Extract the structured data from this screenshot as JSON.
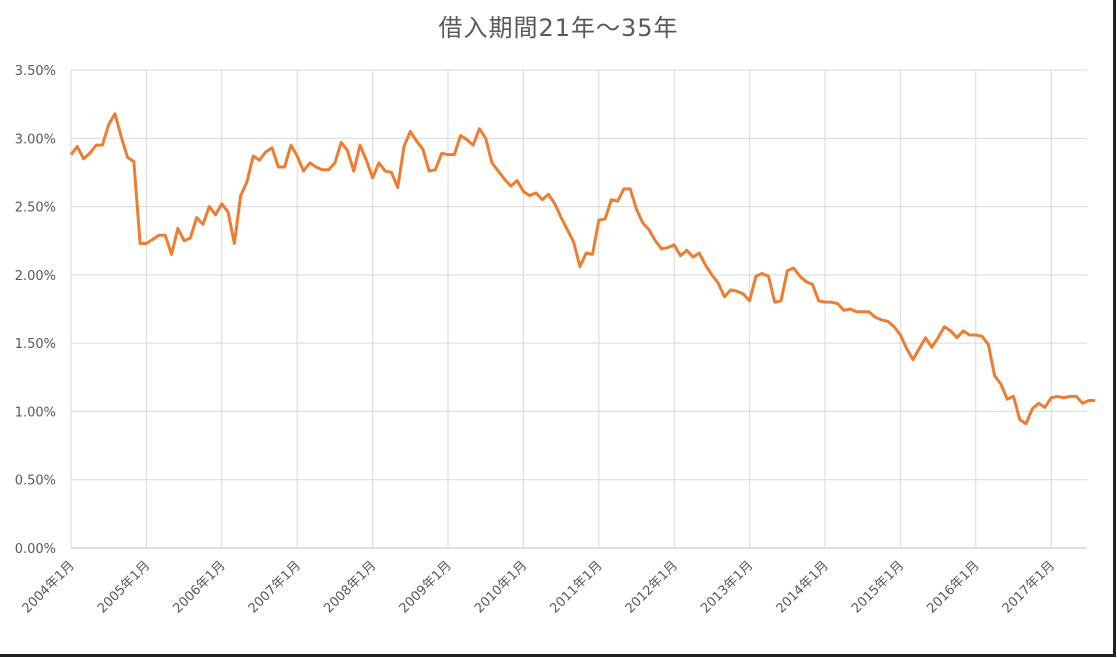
{
  "chart_data": {
    "type": "line",
    "title": "借入期間21年～35年",
    "xlabel": "",
    "ylabel": "",
    "ylim": [
      0,
      0.035
    ],
    "y_ticks": [
      "0.00%",
      "0.50%",
      "1.00%",
      "1.50%",
      "2.00%",
      "2.50%",
      "3.00%",
      "3.50%"
    ],
    "x_ticks": [
      "2004年1月",
      "2005年1月",
      "2006年1月",
      "2007年1月",
      "2008年1月",
      "2009年1月",
      "2010年1月",
      "2011年1月",
      "2012年1月",
      "2013年1月",
      "2014年1月",
      "2015年1月",
      "2016年1月",
      "2017年1月"
    ],
    "x_start": "2004-01",
    "grid": true,
    "legend": "none",
    "color": "#ED7D31",
    "series": [
      {
        "values": [
          0.0288,
          0.0294,
          0.0285,
          0.0289,
          0.0295,
          0.0295,
          0.031,
          0.0318,
          0.0301,
          0.0286,
          0.0283,
          0.0223,
          0.0223,
          0.0226,
          0.0229,
          0.0229,
          0.0215,
          0.0234,
          0.0225,
          0.0227,
          0.0242,
          0.0237,
          0.025,
          0.0244,
          0.0252,
          0.0246,
          0.0223,
          0.0258,
          0.0268,
          0.0287,
          0.0284,
          0.029,
          0.0293,
          0.0279,
          0.0279,
          0.0295,
          0.0287,
          0.0276,
          0.0282,
          0.0279,
          0.0277,
          0.0277,
          0.0282,
          0.0297,
          0.0291,
          0.0276,
          0.0295,
          0.0284,
          0.0271,
          0.0282,
          0.0276,
          0.0275,
          0.0264,
          0.0294,
          0.0305,
          0.0298,
          0.0292,
          0.0276,
          0.0277,
          0.0289,
          0.0288,
          0.0288,
          0.0302,
          0.0299,
          0.0295,
          0.0307,
          0.03,
          0.0282,
          0.0276,
          0.027,
          0.0265,
          0.0269,
          0.0261,
          0.0258,
          0.026,
          0.0255,
          0.0259,
          0.0252,
          0.0242,
          0.0233,
          0.0224,
          0.0206,
          0.0216,
          0.0215,
          0.024,
          0.0241,
          0.0255,
          0.0254,
          0.0263,
          0.0263,
          0.0248,
          0.0238,
          0.0233,
          0.0225,
          0.0219,
          0.022,
          0.0222,
          0.0214,
          0.0218,
          0.0213,
          0.0216,
          0.0207,
          0.02,
          0.0194,
          0.0184,
          0.0189,
          0.0188,
          0.0186,
          0.0181,
          0.0199,
          0.0201,
          0.0199,
          0.018,
          0.0181,
          0.0203,
          0.0205,
          0.0199,
          0.0195,
          0.0193,
          0.0181,
          0.018,
          0.018,
          0.0179,
          0.0174,
          0.0175,
          0.0173,
          0.0173,
          0.0173,
          0.0169,
          0.0167,
          0.0166,
          0.0162,
          0.0156,
          0.0146,
          0.0138,
          0.0146,
          0.0154,
          0.0147,
          0.0154,
          0.0162,
          0.0159,
          0.0154,
          0.0159,
          0.0156,
          0.0156,
          0.0155,
          0.0149,
          0.0126,
          0.012,
          0.0109,
          0.0111,
          0.0094,
          0.0091,
          0.0102,
          0.0106,
          0.0103,
          0.011,
          0.0111,
          0.011,
          0.0111,
          0.0111,
          0.0106,
          0.0108,
          0.0108
        ]
      }
    ]
  }
}
